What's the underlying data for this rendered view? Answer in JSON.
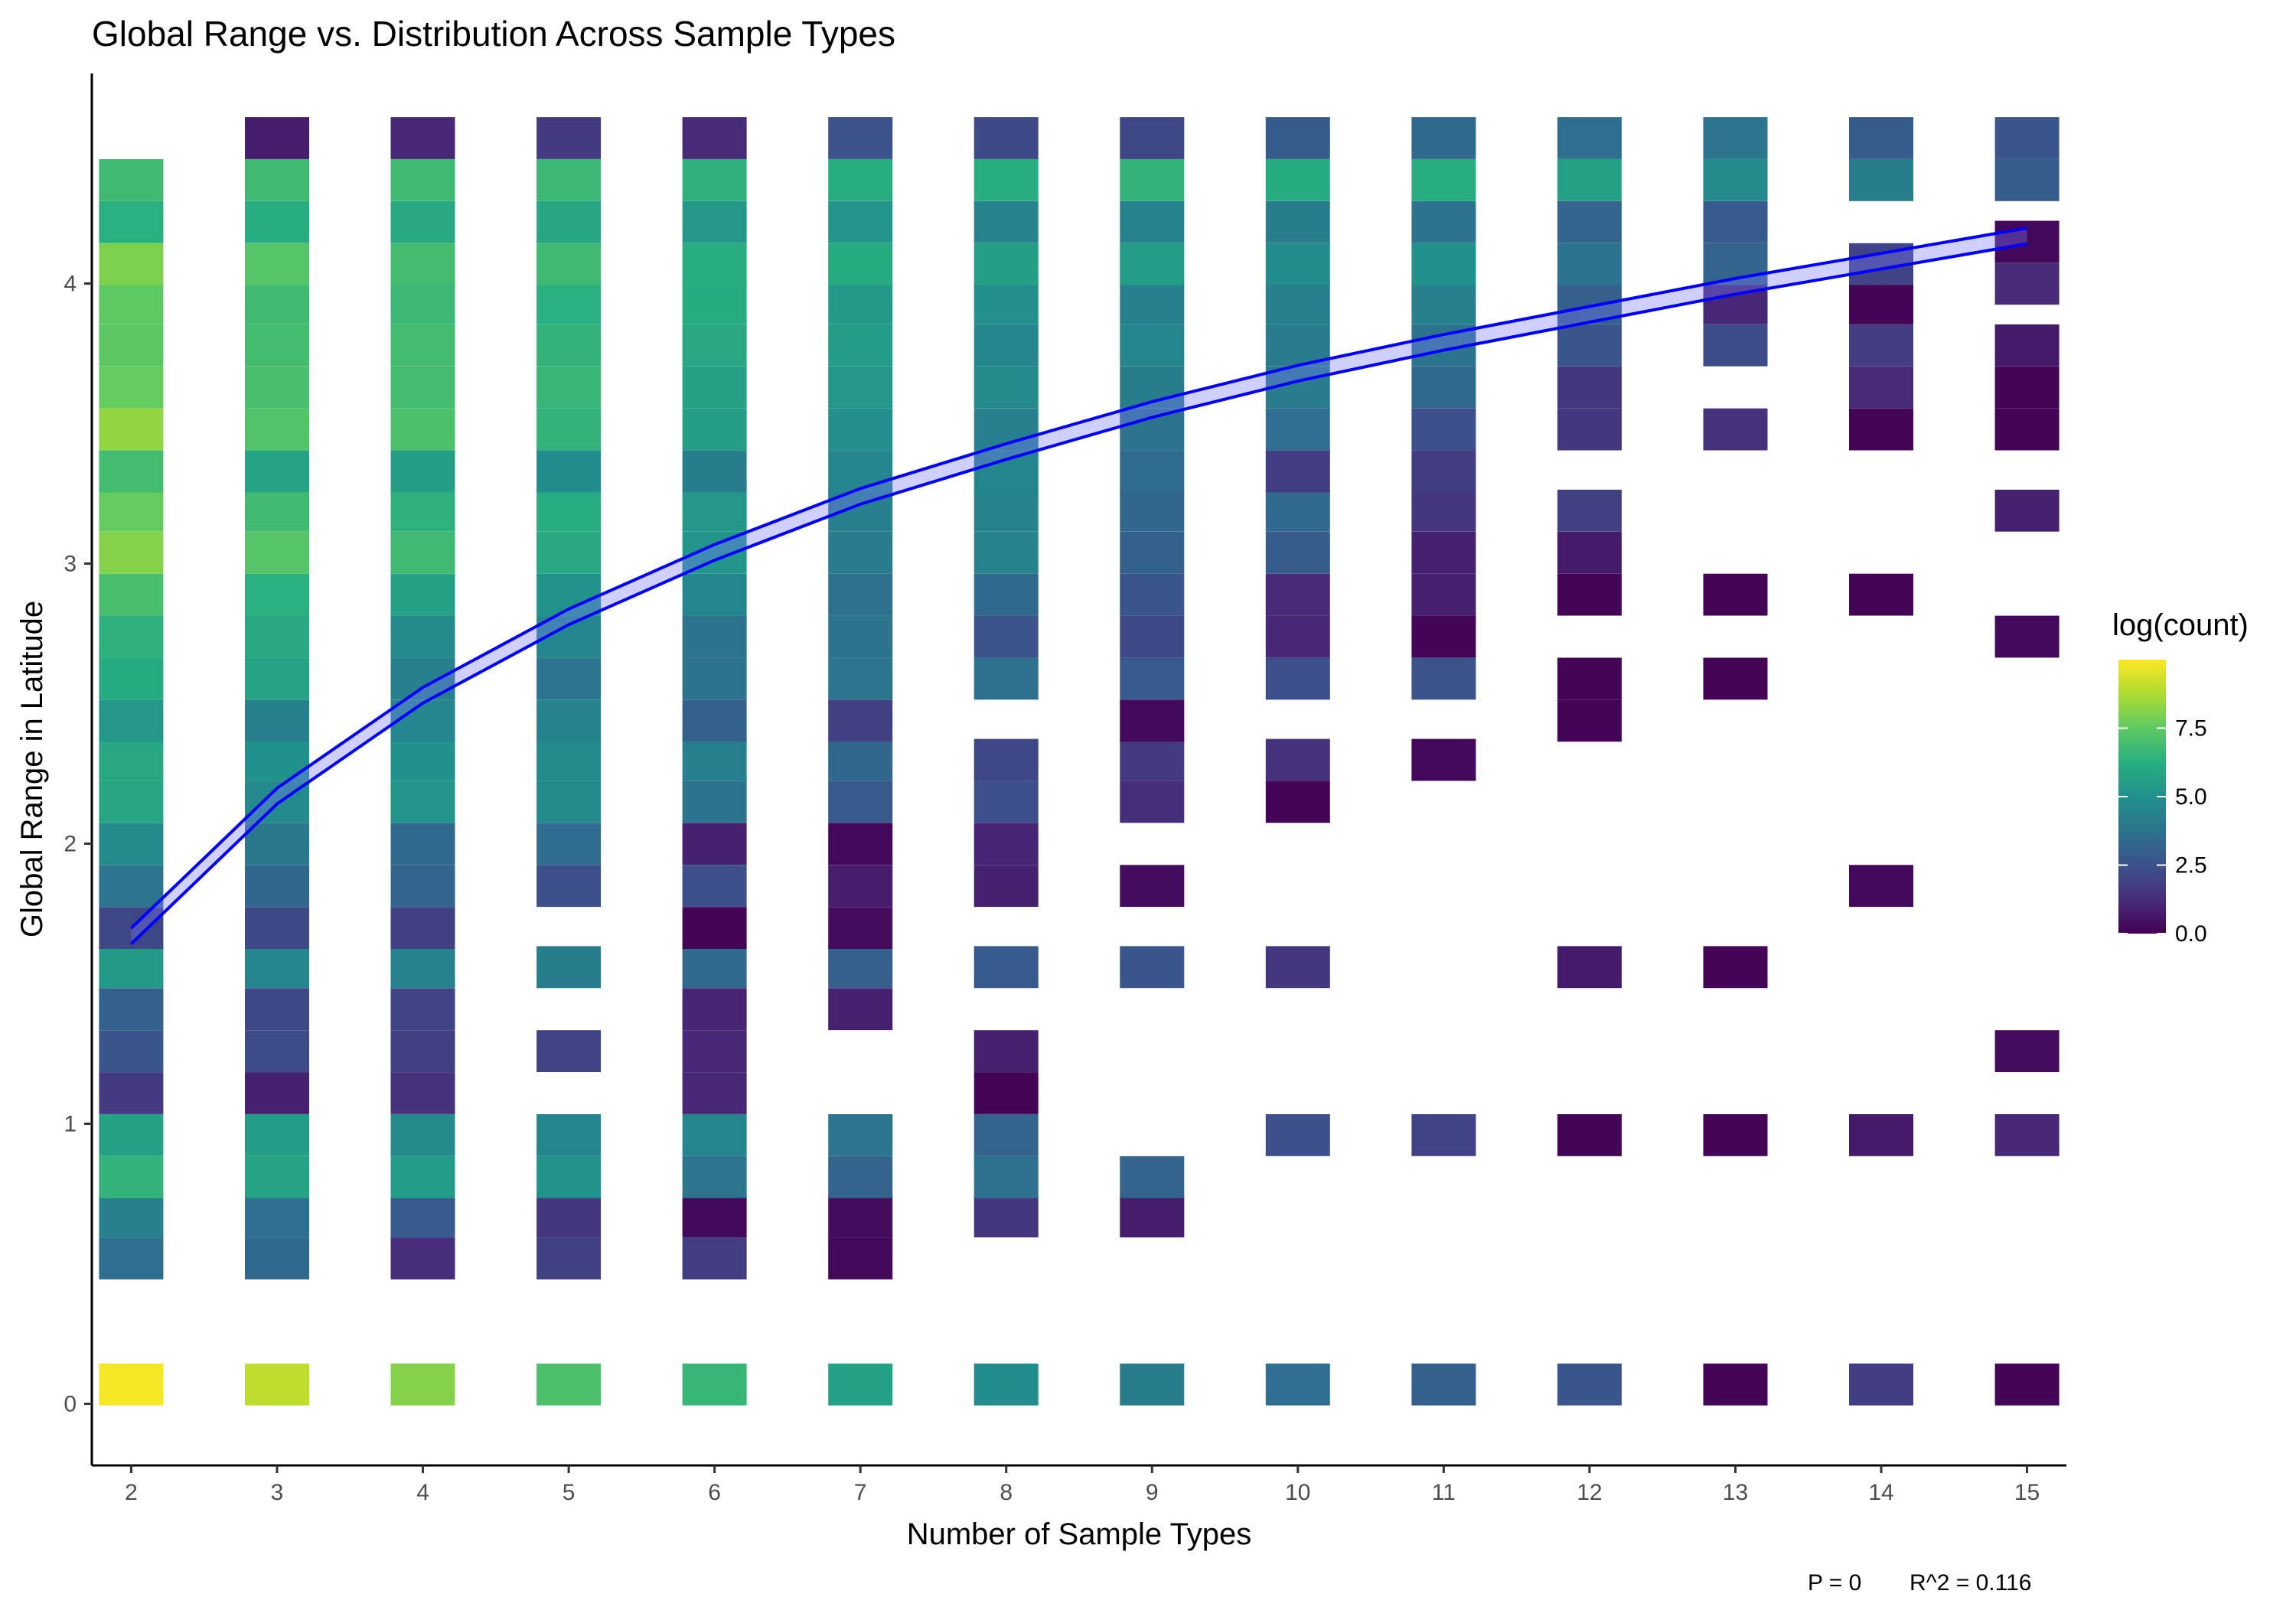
{
  "chart_data": {
    "type": "heatmap",
    "title": "Global Range vs. Distribution Across Sample Types",
    "xlabel": "Number of Sample Types",
    "ylabel": "Global Range in Latitude",
    "x_ticks": [
      2,
      3,
      4,
      5,
      6,
      7,
      8,
      9,
      10,
      11,
      12,
      13,
      14,
      15
    ],
    "y_ticks": [
      0,
      1,
      2,
      3,
      4
    ],
    "xlim": [
      1.73,
      15.27
    ],
    "ylim": [
      -0.22,
      4.75
    ],
    "bin_width": 0.148,
    "grid": false,
    "legend": {
      "title": "log(count)",
      "position": "right",
      "breaks": [
        0.0,
        2.5,
        5.0,
        7.5
      ],
      "break_labels": [
        "0.0",
        "2.5",
        "5.0",
        "7.5"
      ],
      "min": 0,
      "max": 10,
      "colormap": [
        "#440154",
        "#472d7b",
        "#3b528b",
        "#2c728e",
        "#21918c",
        "#28ae80",
        "#5ec962",
        "#addc30",
        "#fde725"
      ]
    },
    "cells": {
      "2": [
        [
          0.07,
          9.9
        ],
        [
          0.52,
          3.6
        ],
        [
          0.67,
          4.3
        ],
        [
          0.81,
          6.5
        ],
        [
          0.96,
          5.7
        ],
        [
          1.11,
          1.7
        ],
        [
          1.26,
          2.6
        ],
        [
          1.41,
          3.1
        ],
        [
          1.56,
          5.4
        ],
        [
          1.7,
          2.1
        ],
        [
          1.85,
          3.9
        ],
        [
          2.0,
          4.7
        ],
        [
          2.15,
          5.9
        ],
        [
          2.3,
          6.0
        ],
        [
          2.44,
          5.3
        ],
        [
          2.59,
          6.1
        ],
        [
          2.74,
          6.4
        ],
        [
          2.89,
          7.0
        ],
        [
          3.04,
          8.1
        ],
        [
          3.19,
          7.6
        ],
        [
          3.33,
          6.9
        ],
        [
          3.48,
          8.3
        ],
        [
          3.63,
          7.6
        ],
        [
          3.78,
          7.4
        ],
        [
          3.93,
          7.5
        ],
        [
          4.07,
          8.0
        ],
        [
          4.22,
          6.3
        ],
        [
          4.37,
          6.8
        ]
      ],
      "3": [
        [
          0.07,
          9.0
        ],
        [
          0.52,
          3.4
        ],
        [
          0.67,
          3.6
        ],
        [
          0.81,
          5.8
        ],
        [
          0.96,
          5.5
        ],
        [
          1.11,
          0.9
        ],
        [
          1.26,
          2.3
        ],
        [
          1.41,
          2.1
        ],
        [
          1.56,
          4.6
        ],
        [
          1.7,
          2.2
        ],
        [
          1.85,
          3.3
        ],
        [
          2.0,
          4.0
        ],
        [
          2.15,
          4.7
        ],
        [
          2.3,
          5.0
        ],
        [
          2.44,
          4.3
        ],
        [
          2.59,
          5.8
        ],
        [
          2.74,
          6.0
        ],
        [
          2.89,
          6.3
        ],
        [
          3.04,
          7.3
        ],
        [
          3.19,
          6.8
        ],
        [
          3.33,
          5.8
        ],
        [
          3.48,
          7.2
        ],
        [
          3.63,
          7.0
        ],
        [
          3.78,
          6.9
        ],
        [
          3.93,
          6.8
        ],
        [
          4.07,
          7.3
        ],
        [
          4.22,
          6.2
        ],
        [
          4.37,
          6.8
        ],
        [
          4.52,
          0.8
        ]
      ],
      "4": [
        [
          0.07,
          8.1
        ],
        [
          0.52,
          1.3
        ],
        [
          0.67,
          2.8
        ],
        [
          0.81,
          5.5
        ],
        [
          0.96,
          4.7
        ],
        [
          1.11,
          1.4
        ],
        [
          1.26,
          1.9
        ],
        [
          1.41,
          2.0
        ],
        [
          1.56,
          4.4
        ],
        [
          1.7,
          1.9
        ],
        [
          1.85,
          3.2
        ],
        [
          2.0,
          3.4
        ],
        [
          2.15,
          5.2
        ],
        [
          2.3,
          5.0
        ],
        [
          2.44,
          4.6
        ],
        [
          2.59,
          4.3
        ],
        [
          2.74,
          4.7
        ],
        [
          2.89,
          5.7
        ],
        [
          3.04,
          6.8
        ],
        [
          3.19,
          6.4
        ],
        [
          3.33,
          5.6
        ],
        [
          3.48,
          7.1
        ],
        [
          3.63,
          6.9
        ],
        [
          3.78,
          6.9
        ],
        [
          3.93,
          6.7
        ],
        [
          4.07,
          6.9
        ],
        [
          4.22,
          6.0
        ],
        [
          4.37,
          6.8
        ],
        [
          4.52,
          1.1
        ]
      ],
      "5": [
        [
          0.07,
          7.1
        ],
        [
          0.52,
          1.9
        ],
        [
          0.67,
          1.6
        ],
        [
          0.81,
          5.1
        ],
        [
          0.96,
          4.6
        ],
        [
          1.26,
          2.0
        ],
        [
          1.56,
          4.2
        ],
        [
          1.85,
          2.4
        ],
        [
          2.0,
          3.5
        ],
        [
          2.15,
          4.7
        ],
        [
          2.3,
          4.7
        ],
        [
          2.44,
          4.4
        ],
        [
          2.59,
          3.9
        ],
        [
          2.74,
          4.6
        ],
        [
          2.89,
          5.1
        ],
        [
          3.04,
          6.0
        ],
        [
          3.19,
          6.2
        ],
        [
          3.33,
          4.8
        ],
        [
          3.48,
          6.5
        ],
        [
          3.63,
          6.6
        ],
        [
          3.78,
          6.5
        ],
        [
          3.93,
          6.3
        ],
        [
          4.07,
          6.8
        ],
        [
          4.22,
          5.9
        ],
        [
          4.37,
          6.7
        ],
        [
          4.52,
          1.7
        ]
      ],
      "6": [
        [
          0.07,
          6.6
        ],
        [
          0.52,
          1.8
        ],
        [
          0.67,
          0.2
        ],
        [
          0.81,
          3.9
        ],
        [
          0.96,
          4.5
        ],
        [
          1.11,
          1.1
        ],
        [
          1.26,
          1.1
        ],
        [
          1.41,
          1.0
        ],
        [
          1.56,
          3.4
        ],
        [
          1.7,
          0.1
        ],
        [
          1.85,
          2.4
        ],
        [
          2.0,
          0.9
        ],
        [
          2.15,
          3.8
        ],
        [
          2.3,
          4.3
        ],
        [
          2.44,
          3.1
        ],
        [
          2.59,
          3.8
        ],
        [
          2.74,
          3.8
        ],
        [
          2.89,
          4.5
        ],
        [
          3.04,
          5.2
        ],
        [
          3.19,
          5.3
        ],
        [
          3.33,
          4.2
        ],
        [
          3.48,
          5.6
        ],
        [
          3.63,
          5.7
        ],
        [
          3.78,
          6.0
        ],
        [
          3.93,
          6.1
        ],
        [
          4.07,
          6.2
        ],
        [
          4.22,
          5.3
        ],
        [
          4.37,
          6.4
        ],
        [
          4.52,
          1.2
        ]
      ],
      "7": [
        [
          0.07,
          5.7
        ],
        [
          0.52,
          0.2
        ],
        [
          0.67,
          0.3
        ],
        [
          0.81,
          3.2
        ],
        [
          0.96,
          3.9
        ],
        [
          1.41,
          0.9
        ],
        [
          1.56,
          3.0
        ],
        [
          1.7,
          0.3
        ],
        [
          1.85,
          0.8
        ],
        [
          2.0,
          0.2
        ],
        [
          2.15,
          2.8
        ],
        [
          2.3,
          3.3
        ],
        [
          2.44,
          1.9
        ],
        [
          2.59,
          3.9
        ],
        [
          2.74,
          3.8
        ],
        [
          2.89,
          3.7
        ],
        [
          3.04,
          4.1
        ],
        [
          3.19,
          4.3
        ],
        [
          3.33,
          4.6
        ],
        [
          3.48,
          4.9
        ],
        [
          3.63,
          5.3
        ],
        [
          3.78,
          5.5
        ],
        [
          3.93,
          5.4
        ],
        [
          4.07,
          6.1
        ],
        [
          4.22,
          5.2
        ],
        [
          4.37,
          6.2
        ],
        [
          4.52,
          2.5
        ]
      ],
      "8": [
        [
          0.07,
          4.8
        ],
        [
          0.67,
          1.6
        ],
        [
          0.81,
          3.7
        ],
        [
          0.96,
          3.2
        ],
        [
          1.11,
          0.1
        ],
        [
          1.26,
          0.9
        ],
        [
          1.56,
          2.8
        ],
        [
          1.85,
          0.9
        ],
        [
          2.0,
          1.0
        ],
        [
          2.15,
          2.4
        ],
        [
          2.3,
          2.1
        ],
        [
          2.59,
          3.7
        ],
        [
          2.74,
          2.5
        ],
        [
          2.89,
          3.4
        ],
        [
          3.04,
          4.4
        ],
        [
          3.19,
          4.4
        ],
        [
          3.33,
          4.5
        ],
        [
          3.48,
          4.3
        ],
        [
          3.63,
          4.7
        ],
        [
          3.78,
          4.6
        ],
        [
          3.93,
          4.9
        ],
        [
          4.07,
          5.6
        ],
        [
          4.22,
          4.4
        ],
        [
          4.37,
          6.2
        ],
        [
          4.52,
          2.2
        ]
      ],
      "9": [
        [
          0.07,
          4.2
        ],
        [
          0.67,
          0.8
        ],
        [
          0.81,
          3.2
        ],
        [
          1.56,
          2.6
        ],
        [
          1.85,
          0.3
        ],
        [
          2.15,
          1.3
        ],
        [
          2.3,
          1.7
        ],
        [
          2.44,
          0.2
        ],
        [
          2.59,
          2.8
        ],
        [
          2.74,
          2.2
        ],
        [
          2.89,
          2.6
        ],
        [
          3.04,
          3.1
        ],
        [
          3.19,
          3.3
        ],
        [
          3.33,
          3.5
        ],
        [
          3.48,
          3.8
        ],
        [
          3.63,
          4.2
        ],
        [
          3.78,
          4.5
        ],
        [
          3.93,
          4.3
        ],
        [
          4.07,
          5.5
        ],
        [
          4.22,
          4.4
        ],
        [
          4.37,
          6.5
        ],
        [
          4.52,
          2.1
        ]
      ],
      "10": [
        [
          0.07,
          3.6
        ],
        [
          0.96,
          2.4
        ],
        [
          1.56,
          1.6
        ],
        [
          2.15,
          0.1
        ],
        [
          2.3,
          1.4
        ],
        [
          2.59,
          2.4
        ],
        [
          2.74,
          1.1
        ],
        [
          2.89,
          1.2
        ],
        [
          3.04,
          2.9
        ],
        [
          3.19,
          3.4
        ],
        [
          3.33,
          1.8
        ],
        [
          3.48,
          3.6
        ],
        [
          3.63,
          4.1
        ],
        [
          3.78,
          4.1
        ],
        [
          3.93,
          4.3
        ],
        [
          4.07,
          4.8
        ],
        [
          4.22,
          4.2
        ],
        [
          4.37,
          6.1
        ],
        [
          4.52,
          2.9
        ]
      ],
      "11": [
        [
          0.07,
          3.1
        ],
        [
          0.96,
          2.0
        ],
        [
          2.3,
          0.2
        ],
        [
          2.59,
          2.5
        ],
        [
          2.74,
          0.1
        ],
        [
          2.89,
          0.9
        ],
        [
          3.04,
          0.9
        ],
        [
          3.19,
          1.6
        ],
        [
          3.33,
          1.8
        ],
        [
          3.48,
          2.4
        ],
        [
          3.63,
          3.4
        ],
        [
          3.78,
          3.8
        ],
        [
          3.93,
          4.3
        ],
        [
          4.07,
          5.0
        ],
        [
          4.22,
          3.8
        ],
        [
          4.37,
          6.2
        ],
        [
          4.52,
          3.4
        ]
      ],
      "12": [
        [
          0.07,
          2.6
        ],
        [
          0.96,
          0.1
        ],
        [
          1.56,
          0.7
        ],
        [
          2.44,
          0.1
        ],
        [
          2.59,
          0.1
        ],
        [
          2.89,
          0.1
        ],
        [
          3.04,
          0.7
        ],
        [
          3.19,
          1.9
        ],
        [
          3.48,
          1.6
        ],
        [
          3.63,
          1.6
        ],
        [
          3.78,
          2.6
        ],
        [
          3.93,
          3.0
        ],
        [
          4.07,
          3.8
        ],
        [
          4.22,
          3.2
        ],
        [
          4.37,
          5.7
        ],
        [
          4.52,
          3.6
        ]
      ],
      "13": [
        [
          0.07,
          0.1
        ],
        [
          0.96,
          0.1
        ],
        [
          1.56,
          0.1
        ],
        [
          2.59,
          0.1
        ],
        [
          2.89,
          0.1
        ],
        [
          3.48,
          1.4
        ],
        [
          3.78,
          2.3
        ],
        [
          3.93,
          1.1
        ],
        [
          4.07,
          3.2
        ],
        [
          4.22,
          2.8
        ],
        [
          4.37,
          4.7
        ],
        [
          4.52,
          3.9
        ]
      ],
      "14": [
        [
          0.07,
          1.8
        ],
        [
          0.96,
          0.7
        ],
        [
          1.85,
          0.2
        ],
        [
          2.89,
          0.1
        ],
        [
          3.48,
          0.1
        ],
        [
          3.63,
          1.2
        ],
        [
          3.78,
          1.8
        ],
        [
          3.93,
          0.1
        ],
        [
          4.07,
          2.0
        ],
        [
          4.37,
          4.2
        ],
        [
          4.52,
          2.9
        ]
      ],
      "15": [
        [
          0.07,
          0.1
        ],
        [
          0.96,
          1.1
        ],
        [
          1.26,
          0.3
        ],
        [
          2.74,
          0.2
        ],
        [
          3.19,
          0.9
        ],
        [
          3.48,
          0.1
        ],
        [
          3.63,
          0.1
        ],
        [
          3.78,
          0.7
        ],
        [
          4.0,
          1.2
        ],
        [
          4.15,
          0.2
        ],
        [
          4.37,
          2.9
        ],
        [
          4.52,
          2.6
        ]
      ]
    },
    "trend_line": {
      "x": [
        2,
        3,
        4,
        5,
        6,
        7,
        8,
        9,
        10,
        11,
        12,
        13,
        14,
        15
      ],
      "y": [
        1.67,
        2.17,
        2.53,
        2.81,
        3.04,
        3.24,
        3.4,
        3.55,
        3.68,
        3.79,
        3.89,
        3.99,
        4.08,
        4.17
      ],
      "ci_halfwidth": 0.028,
      "color": "#0000ff"
    },
    "annotations": {
      "p_value": "P = 0",
      "r_squared": "R^2 =  0.116"
    }
  }
}
